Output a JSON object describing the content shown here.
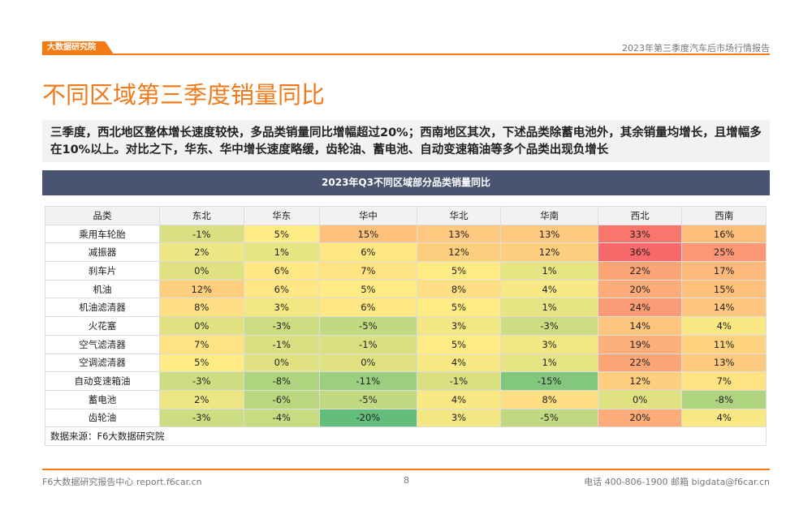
{
  "header": {
    "logo_text": "大数据研究院",
    "report_title": "2023年第三季度汽车后市场行情报告"
  },
  "page_title": "不同区域第三季度销量同比",
  "summary": "三季度，西北地区整体增长速度较快，多品类销量同比增幅超过20%；西南地区其次，下述品类除蓄电池外，其余销量均增长，且增幅多在10%以上。对比之下，华东、华中增长速度略缓，齿轮油、蓄电池、自动变速箱油等多个品类出现负增长",
  "table": {
    "title": "2023年Q3不同区域部分品类销量同比",
    "columns": [
      "品类",
      "东北",
      "华东",
      "华中",
      "华北",
      "华南",
      "西北",
      "西南"
    ],
    "rows": [
      {
        "category": "乘用车轮胎",
        "values": [
          -1,
          5,
          15,
          13,
          13,
          33,
          16
        ]
      },
      {
        "category": "减振器",
        "values": [
          2,
          1,
          6,
          12,
          12,
          36,
          25
        ]
      },
      {
        "category": "刹车片",
        "values": [
          0,
          6,
          7,
          5,
          1,
          22,
          17
        ]
      },
      {
        "category": "机油",
        "values": [
          12,
          6,
          5,
          8,
          4,
          20,
          15
        ]
      },
      {
        "category": "机油滤清器",
        "values": [
          8,
          3,
          6,
          5,
          1,
          24,
          14
        ]
      },
      {
        "category": "火花塞",
        "values": [
          0,
          -3,
          -5,
          3,
          -3,
          14,
          4
        ]
      },
      {
        "category": "空气滤清器",
        "values": [
          7,
          -1,
          -1,
          5,
          3,
          19,
          11
        ]
      },
      {
        "category": "空调滤清器",
        "values": [
          5,
          0,
          0,
          4,
          1,
          22,
          13
        ]
      },
      {
        "category": "自动变速箱油",
        "values": [
          -3,
          -8,
          -11,
          -1,
          -15,
          12,
          7
        ]
      },
      {
        "category": "蓄电池",
        "values": [
          2,
          -6,
          -5,
          4,
          8,
          0,
          -8
        ]
      },
      {
        "category": "齿轮油",
        "values": [
          -3,
          -4,
          -20,
          3,
          -5,
          20,
          4
        ]
      }
    ],
    "unit": "%",
    "color_scale": {
      "min_color": "#63be7b",
      "mid_color": "#ffeb84",
      "max_color": "#f8696b",
      "min": -20,
      "mid": 5,
      "max": 36
    },
    "source": "数据来源：F6大数据研究院"
  },
  "footer": {
    "left": "F6大数据研究报告中心 report.f6car.cn",
    "page": "8",
    "right": "电话 400-806-1900  邮箱 bigdata@f6car.cn"
  },
  "colors": {
    "accent": "#f57c14",
    "table_title_bg": "#4a5470"
  }
}
